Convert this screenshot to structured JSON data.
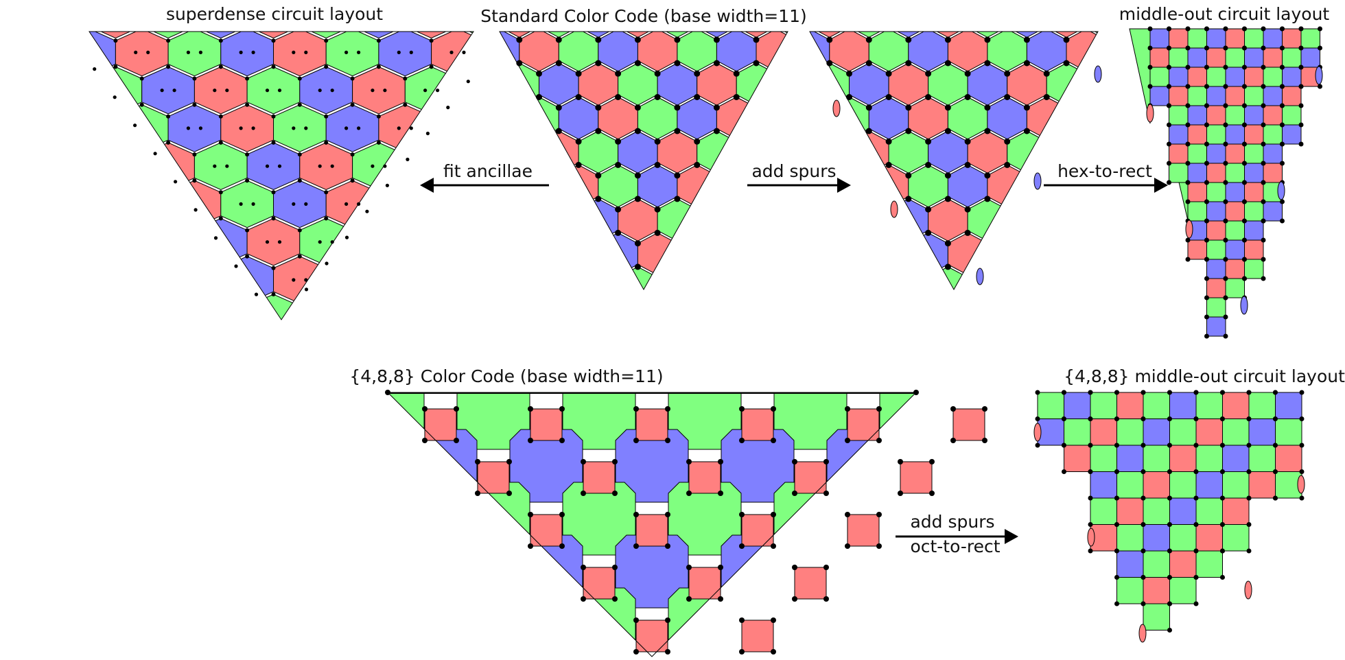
{
  "titles": {
    "superdense": "superdense circuit layout",
    "standard": "Standard Color Code (base width=11)",
    "middle_out": "middle-out circuit layout",
    "code488": "{4,8,8} Color Code (base width=11)",
    "middle_out_488": "{4,8,8} middle-out circuit layout"
  },
  "arrows": {
    "fit_ancillae": "fit ancillae",
    "add_spurs": "add spurs",
    "hex_to_rect": "hex-to-rect",
    "add_spurs_2": "add spurs",
    "oct_to_rect": "oct-to-rect"
  },
  "colors": {
    "green": "#80ff80",
    "red": "#ff8080",
    "blue": "#8080ff",
    "edge": "#000000",
    "qubit": "#000000"
  },
  "figures": {
    "standard_hex": {
      "type": "triangular-hex-color-code",
      "base_width": 11
    },
    "superdense": {
      "type": "superdense-circuit-layout",
      "base_width": 11
    },
    "spurs_hex": {
      "type": "hex-with-spurs",
      "base_width": 11
    },
    "middle_out": {
      "type": "middle-out-rect-layout",
      "base_width": 11
    },
    "code488": {
      "type": "4-8-8-color-code",
      "base_width": 11
    },
    "middle_out_488": {
      "type": "4-8-8-middle-out-rect-layout",
      "base_width": 11
    }
  }
}
